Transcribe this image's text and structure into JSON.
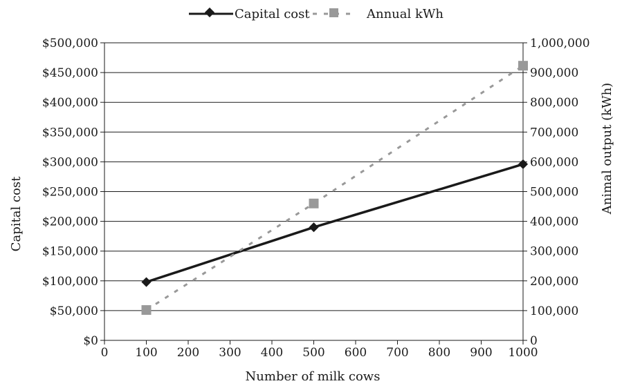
{
  "chart_data": {
    "type": "line",
    "title": "",
    "xlabel": "Number of milk cows",
    "ylabel": "Capital cost",
    "y2label": "Animal output (kWh)",
    "xlim": [
      0,
      1000
    ],
    "ylim": [
      0,
      500000
    ],
    "y2lim": [
      0,
      1000000
    ],
    "x_ticks": [
      "0",
      "100",
      "200",
      "300",
      "400",
      "500",
      "600",
      "700",
      "800",
      "900",
      "1000"
    ],
    "y_ticks": [
      "$0",
      "$50,000",
      "$100,000",
      "$150,000",
      "$200,000",
      "$250,000",
      "$300,000",
      "$350,000",
      "$400,000",
      "$450,000",
      "$500,000"
    ],
    "y2_ticks": [
      "0",
      "100,000",
      "200,000",
      "300,000",
      "400,000",
      "500,000",
      "600,000",
      "700,000",
      "800,000",
      "900,000",
      "1,000,000"
    ],
    "grid": true,
    "legend_position": "top-center",
    "series": [
      {
        "name": "Capital cost",
        "axis": "left",
        "style": "solid",
        "marker": "diamond",
        "color": "#1a1a1a",
        "x": [
          100,
          500,
          1000
        ],
        "y": [
          98000,
          190000,
          296000
        ]
      },
      {
        "name": "Annual kWh",
        "axis": "right",
        "style": "dashed",
        "marker": "square",
        "color": "#999999",
        "x": [
          100,
          500,
          1000
        ],
        "y": [
          102000,
          460000,
          923000
        ]
      }
    ]
  }
}
